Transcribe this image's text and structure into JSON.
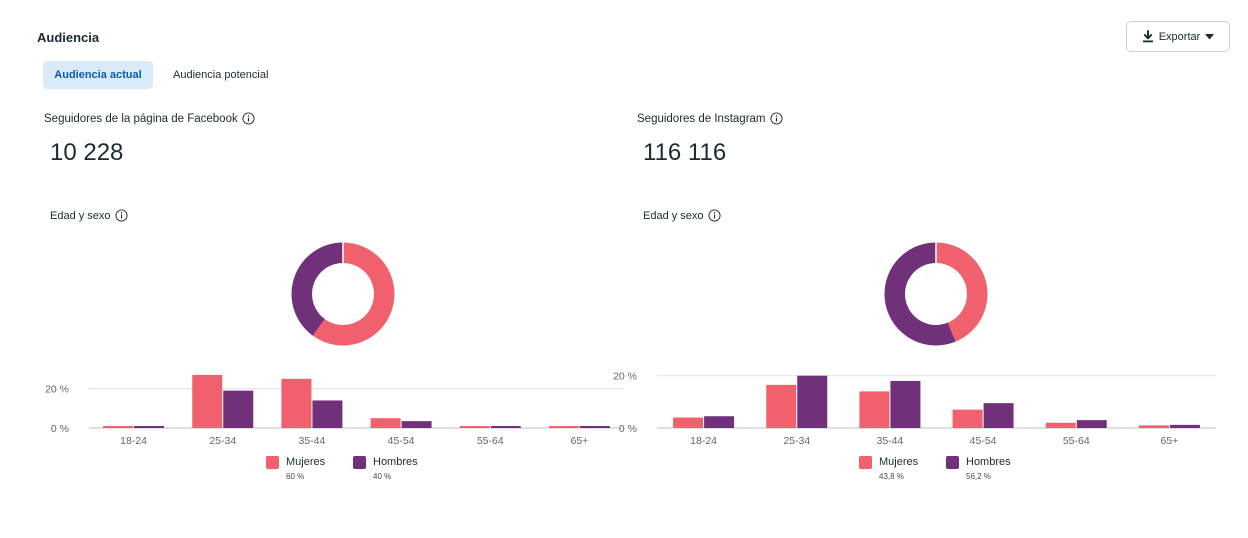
{
  "page": {
    "title": "Audiencia",
    "export_label": "Exportar",
    "tabs": [
      {
        "label": "Audiencia actual",
        "active": true
      },
      {
        "label": "Audiencia potencial",
        "active": false
      }
    ]
  },
  "colors": {
    "women": "#f0616d",
    "men": "#70307a",
    "grid": "#dddfe2",
    "axis_text": "#606770"
  },
  "panels": [
    {
      "followers_label": "Seguidores de la página de Facebook",
      "followers_value": "10 228",
      "section_label": "Edad y sexo"
    },
    {
      "followers_label": "Seguidores de Instagram",
      "followers_value": "116 116",
      "section_label": "Edad y sexo"
    }
  ],
  "chart_data": [
    {
      "type": "pie",
      "donut": true,
      "series": [
        {
          "name": "Mujeres",
          "value": 60
        },
        {
          "name": "Hombres",
          "value": 40
        }
      ]
    },
    {
      "type": "bar",
      "categories": [
        "18-24",
        "25-34",
        "35-44",
        "45-54",
        "55-64",
        "65+"
      ],
      "series": [
        {
          "name": "Mujeres",
          "values": [
            1,
            27,
            25,
            5,
            1,
            1
          ]
        },
        {
          "name": "Hombres",
          "values": [
            1,
            19,
            14,
            3.5,
            1,
            1
          ]
        }
      ],
      "yticks": [
        "0 %",
        "20 %"
      ],
      "ylim": [
        0,
        30
      ],
      "legend": [
        {
          "name": "Mujeres",
          "pct": "60 %"
        },
        {
          "name": "Hombres",
          "pct": "40 %"
        }
      ],
      "legend_position": "bottom"
    },
    {
      "type": "pie",
      "donut": true,
      "series": [
        {
          "name": "Mujeres",
          "value": 43.8
        },
        {
          "name": "Hombres",
          "value": 56.2
        }
      ]
    },
    {
      "type": "bar",
      "categories": [
        "18-24",
        "25-34",
        "35-44",
        "45-54",
        "55-64",
        "65+"
      ],
      "series": [
        {
          "name": "Mujeres",
          "values": [
            4,
            16.5,
            14,
            7,
            2,
            1
          ]
        },
        {
          "name": "Hombres",
          "values": [
            4.5,
            20,
            18,
            9.5,
            3,
            1.2
          ]
        }
      ],
      "yticks": [
        "0 %",
        "20 %"
      ],
      "ylim": [
        0,
        27
      ],
      "legend": [
        {
          "name": "Mujeres",
          "pct": "43,8 %"
        },
        {
          "name": "Hombres",
          "pct": "56,2 %"
        }
      ],
      "legend_position": "bottom"
    }
  ]
}
